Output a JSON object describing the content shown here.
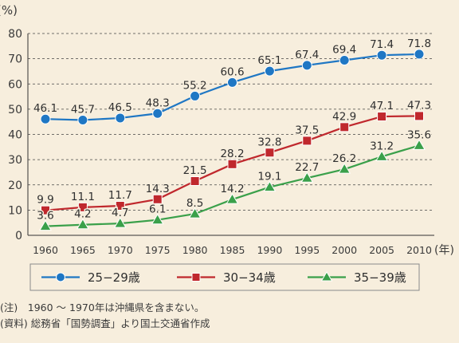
{
  "chart_data": {
    "type": "line",
    "y_unit_label": "(%)",
    "x_unit_label": "(年)",
    "x": [
      "1960",
      "1965",
      "1970",
      "1975",
      "1980",
      "1985",
      "1990",
      "1995",
      "2000",
      "2005",
      "2010"
    ],
    "ylim": [
      0,
      80
    ],
    "yticks": [
      0,
      10,
      20,
      30,
      40,
      50,
      60,
      70,
      80
    ],
    "grid": "horizontal dashed",
    "legend_position": "bottom",
    "series": [
      {
        "name": "25−29歳",
        "marker": "circle",
        "color": "#1f77c4",
        "values": [
          46.1,
          45.7,
          46.5,
          48.3,
          55.2,
          60.6,
          65.1,
          67.4,
          69.4,
          71.4,
          71.8
        ]
      },
      {
        "name": "30−34歳",
        "marker": "square",
        "color": "#c0282d",
        "values": [
          9.9,
          11.1,
          11.7,
          14.3,
          21.5,
          28.2,
          32.8,
          37.5,
          42.9,
          47.1,
          47.3
        ]
      },
      {
        "name": "35−39歳",
        "marker": "triangle",
        "color": "#3aa04a",
        "values": [
          3.6,
          4.2,
          4.7,
          6.1,
          8.5,
          14.2,
          19.1,
          22.7,
          26.2,
          31.2,
          35.6
        ]
      }
    ]
  },
  "notes": {
    "note": "(注)　1960 〜 1970年は沖縄県を含まない。",
    "source": "(資料) 総務省「国勢調査」より国土交通省作成"
  }
}
